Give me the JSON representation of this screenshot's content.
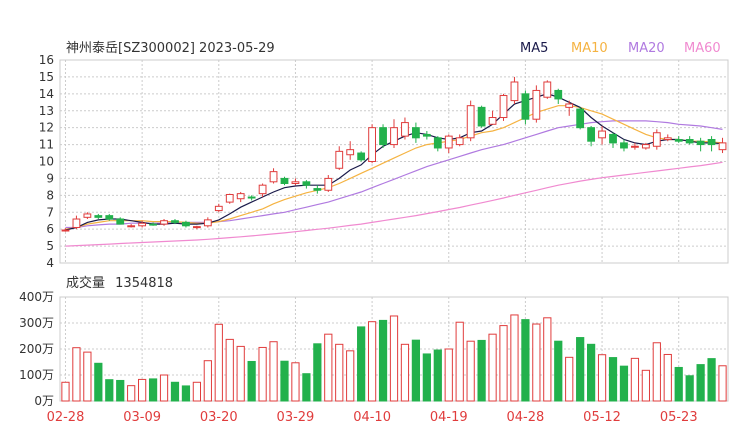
{
  "header": {
    "title": "神州泰岳[SZ300002] 2023-05-29"
  },
  "legend": [
    {
      "label": "MA5",
      "color": "#1a1a4a"
    },
    {
      "label": "MA10",
      "color": "#f5b342"
    },
    {
      "label": "MA20",
      "color": "#b07ae0"
    },
    {
      "label": "MA60",
      "color": "#f08ad0"
    }
  ],
  "colors": {
    "up": "#e03c3c",
    "down": "#22b14c",
    "grid": "#cccccc",
    "date_label": "#e03c3c"
  },
  "chart_data": [
    {
      "type": "candlestick",
      "ylim": [
        4,
        16
      ],
      "yticks": [
        "4",
        "5",
        "6",
        "7",
        "8",
        "9",
        "10",
        "11",
        "12",
        "13",
        "14",
        "15",
        "16"
      ],
      "xticks": [
        {
          "label": "02-28",
          "index": 0
        },
        {
          "label": "03-09",
          "index": 7
        },
        {
          "label": "03-20",
          "index": 14
        },
        {
          "label": "03-29",
          "index": 21
        },
        {
          "label": "04-10",
          "index": 28
        },
        {
          "label": "04-19",
          "index": 35
        },
        {
          "label": "04-28",
          "index": 42
        },
        {
          "label": "05-12",
          "index": 49
        },
        {
          "label": "05-23",
          "index": 56
        }
      ],
      "ohlc": [
        [
          5.95,
          5.95,
          5.85,
          6.05
        ],
        [
          6.1,
          6.6,
          6.0,
          6.8
        ],
        [
          6.7,
          6.9,
          6.6,
          7.0
        ],
        [
          6.8,
          6.7,
          6.6,
          6.9
        ],
        [
          6.8,
          6.6,
          6.5,
          6.9
        ],
        [
          6.6,
          6.3,
          6.3,
          6.7
        ],
        [
          6.2,
          6.2,
          6.1,
          6.3
        ],
        [
          6.2,
          6.35,
          6.1,
          6.5
        ],
        [
          6.3,
          6.25,
          6.2,
          6.4
        ],
        [
          6.3,
          6.5,
          6.2,
          6.6
        ],
        [
          6.5,
          6.4,
          6.3,
          6.6
        ],
        [
          6.4,
          6.2,
          6.1,
          6.5
        ],
        [
          6.1,
          6.15,
          6.0,
          6.2
        ],
        [
          6.2,
          6.55,
          6.1,
          6.7
        ],
        [
          7.1,
          7.35,
          7.0,
          7.5
        ],
        [
          7.6,
          8.05,
          7.5,
          8.1
        ],
        [
          7.8,
          8.1,
          7.6,
          8.2
        ],
        [
          7.9,
          7.85,
          7.7,
          8.0
        ],
        [
          8.1,
          8.6,
          7.9,
          8.7
        ],
        [
          8.8,
          9.4,
          8.7,
          9.6
        ],
        [
          9.0,
          8.7,
          8.6,
          9.1
        ],
        [
          8.7,
          8.8,
          8.6,
          9.0
        ],
        [
          8.8,
          8.6,
          8.4,
          8.9
        ],
        [
          8.4,
          8.3,
          8.1,
          8.6
        ],
        [
          8.3,
          9.0,
          8.2,
          9.2
        ],
        [
          9.6,
          10.6,
          9.5,
          10.9
        ],
        [
          10.4,
          10.7,
          10.1,
          11.2
        ],
        [
          10.5,
          10.1,
          10.0,
          10.6
        ],
        [
          10.0,
          12.0,
          9.9,
          12.2
        ],
        [
          12.0,
          11.0,
          10.8,
          12.2
        ],
        [
          11.0,
          12.0,
          10.8,
          12.5
        ],
        [
          11.5,
          12.3,
          11.3,
          12.6
        ],
        [
          12.0,
          11.4,
          11.1,
          12.3
        ],
        [
          11.6,
          11.5,
          11.3,
          11.8
        ],
        [
          11.4,
          10.8,
          10.6,
          11.5
        ],
        [
          10.8,
          11.5,
          10.5,
          11.6
        ],
        [
          11.0,
          11.4,
          10.9,
          11.6
        ],
        [
          11.4,
          13.3,
          11.2,
          13.6
        ],
        [
          13.2,
          12.1,
          12.0,
          13.3
        ],
        [
          12.2,
          12.6,
          12.2,
          13.0
        ],
        [
          12.6,
          13.9,
          12.4,
          14.0
        ],
        [
          13.6,
          14.7,
          13.4,
          15.0
        ],
        [
          14.0,
          12.5,
          12.2,
          14.2
        ],
        [
          12.5,
          14.2,
          12.3,
          14.5
        ],
        [
          13.8,
          14.7,
          13.7,
          14.8
        ],
        [
          14.2,
          13.7,
          13.4,
          14.3
        ],
        [
          13.2,
          13.4,
          12.7,
          13.6
        ],
        [
          13.1,
          12.0,
          11.9,
          13.2
        ],
        [
          12.0,
          11.2,
          10.9,
          12.1
        ],
        [
          11.4,
          11.8,
          11.0,
          12.1
        ],
        [
          11.6,
          11.1,
          10.8,
          11.7
        ],
        [
          11.1,
          10.8,
          10.6,
          11.3
        ],
        [
          10.9,
          10.9,
          10.7,
          11.1
        ],
        [
          10.8,
          11.0,
          10.7,
          11.1
        ],
        [
          10.9,
          11.7,
          10.7,
          11.9
        ],
        [
          11.3,
          11.4,
          11.2,
          11.6
        ],
        [
          11.3,
          11.2,
          11.1,
          11.5
        ],
        [
          11.3,
          11.1,
          11.0,
          11.5
        ],
        [
          11.2,
          11.0,
          10.6,
          11.4
        ],
        [
          11.3,
          11.0,
          10.6,
          11.5
        ],
        [
          10.7,
          11.1,
          10.5,
          11.4
        ]
      ],
      "ma": {
        "MA5": [
          5.95,
          6.1,
          6.4,
          6.55,
          6.6,
          6.6,
          6.5,
          6.4,
          6.3,
          6.3,
          6.35,
          6.3,
          6.3,
          6.35,
          6.55,
          6.9,
          7.3,
          7.6,
          7.9,
          8.2,
          8.45,
          8.55,
          8.6,
          8.6,
          8.6,
          9.0,
          9.5,
          9.8,
          10.4,
          10.9,
          11.2,
          11.5,
          11.7,
          11.6,
          11.4,
          11.3,
          11.4,
          11.7,
          11.8,
          12.2,
          12.8,
          13.4,
          13.6,
          13.8,
          14.0,
          13.8,
          13.5,
          13.2,
          12.6,
          12.1,
          11.7,
          11.3,
          11.1,
          11.0,
          11.2,
          11.3,
          11.3,
          11.2,
          11.1,
          11.1,
          11.05
        ],
        "MA10": [
          6.0,
          6.1,
          6.3,
          6.4,
          6.5,
          6.5,
          6.5,
          6.5,
          6.45,
          6.45,
          6.45,
          6.4,
          6.35,
          6.35,
          6.45,
          6.6,
          6.8,
          7.0,
          7.2,
          7.5,
          7.75,
          7.95,
          8.15,
          8.3,
          8.45,
          8.7,
          9.0,
          9.3,
          9.6,
          9.9,
          10.2,
          10.5,
          10.8,
          11.0,
          11.1,
          11.2,
          11.3,
          11.5,
          11.7,
          11.8,
          12.0,
          12.3,
          12.6,
          12.9,
          13.1,
          13.3,
          13.3,
          13.2,
          13.0,
          12.8,
          12.5,
          12.2,
          11.9,
          11.6,
          11.4,
          11.3,
          11.3,
          11.2,
          11.2,
          11.15,
          11.1
        ],
        "MA20": [
          6.1,
          6.1,
          6.2,
          6.25,
          6.3,
          6.3,
          6.35,
          6.35,
          6.35,
          6.35,
          6.4,
          6.4,
          6.4,
          6.4,
          6.45,
          6.5,
          6.6,
          6.7,
          6.8,
          6.9,
          7.0,
          7.15,
          7.3,
          7.45,
          7.6,
          7.8,
          8.0,
          8.2,
          8.45,
          8.7,
          8.95,
          9.2,
          9.45,
          9.7,
          9.9,
          10.1,
          10.3,
          10.5,
          10.7,
          10.85,
          11.0,
          11.2,
          11.4,
          11.6,
          11.8,
          12.0,
          12.1,
          12.2,
          12.3,
          12.35,
          12.4,
          12.4,
          12.4,
          12.4,
          12.35,
          12.3,
          12.2,
          12.15,
          12.1,
          12.0,
          11.9
        ],
        "MA60": [
          5.0,
          5.03,
          5.06,
          5.09,
          5.12,
          5.15,
          5.18,
          5.21,
          5.24,
          5.27,
          5.3,
          5.33,
          5.36,
          5.4,
          5.45,
          5.5,
          5.55,
          5.6,
          5.66,
          5.72,
          5.78,
          5.85,
          5.92,
          5.99,
          6.06,
          6.14,
          6.22,
          6.3,
          6.4,
          6.5,
          6.6,
          6.7,
          6.8,
          6.92,
          7.04,
          7.16,
          7.28,
          7.42,
          7.56,
          7.7,
          7.84,
          8.0,
          8.15,
          8.3,
          8.45,
          8.6,
          8.72,
          8.84,
          8.94,
          9.04,
          9.12,
          9.2,
          9.28,
          9.36,
          9.44,
          9.52,
          9.6,
          9.68,
          9.76,
          9.85,
          9.95
        ]
      }
    },
    {
      "type": "bar",
      "title": "成交量",
      "latest_label": "1354818",
      "ylim": [
        0,
        4000000
      ],
      "yticks": [
        "0万",
        "100万",
        "200万",
        "300万",
        "400万"
      ],
      "values": [
        720000,
        2050000,
        1880000,
        1450000,
        820000,
        790000,
        590000,
        830000,
        850000,
        1000000,
        720000,
        580000,
        720000,
        1550000,
        2950000,
        2370000,
        2100000,
        1520000,
        2060000,
        2280000,
        1530000,
        1470000,
        1050000,
        2200000,
        2570000,
        2180000,
        1930000,
        2850000,
        3050000,
        3100000,
        3270000,
        2180000,
        2340000,
        1810000,
        1960000,
        2000000,
        3030000,
        2300000,
        2330000,
        2570000,
        2900000,
        3310000,
        3130000,
        2960000,
        3200000,
        2300000,
        1680000,
        2440000,
        2180000,
        1780000,
        1670000,
        1340000,
        1640000,
        1180000,
        2240000,
        1790000,
        1290000,
        970000,
        1400000,
        1630000,
        1354818
      ]
    }
  ]
}
